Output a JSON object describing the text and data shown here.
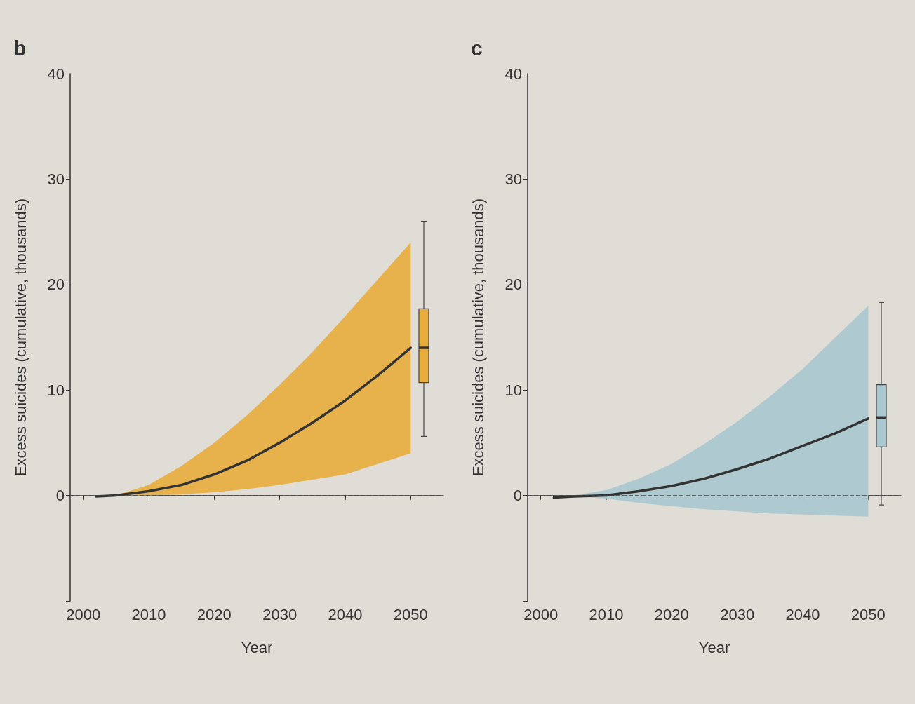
{
  "chart_data": [
    {
      "type": "line",
      "title": "b",
      "xlabel": "Year",
      "ylabel": "Excess suicides (cumulative, thousands)",
      "xlim": [
        1998,
        2055
      ],
      "xticks": [
        2000,
        2010,
        2020,
        2030,
        2040,
        2050
      ],
      "ylim": [
        -10,
        40
      ],
      "yticks": [
        {
          "value": -10,
          "label": null
        },
        0,
        10,
        20,
        30,
        40
      ],
      "grid": false,
      "marker": "none",
      "ref_lines": [
        {
          "axis": "y",
          "value": 0,
          "line_style": "dashed",
          "color": "#444444"
        }
      ],
      "series": [
        {
          "color": "#333333",
          "x": [
            2002,
            2005,
            2010,
            2015,
            2020,
            2025,
            2030,
            2035,
            2040,
            2045,
            2050
          ],
          "values": [
            -0.1,
            0,
            0.4,
            1,
            2,
            3.3,
            5,
            6.9,
            9,
            11.4,
            14
          ],
          "lower": [
            -0.1,
            0,
            0,
            0.1,
            0.3,
            0.6,
            1,
            1.5,
            2,
            3,
            4
          ],
          "upper": [
            -0.1,
            0,
            1,
            2.8,
            5,
            7.6,
            10.5,
            13.6,
            17,
            20.5,
            24
          ]
        },
        {
          "type": "box",
          "color": "#e8ac3c",
          "x": [
            2052
          ],
          "boxes": [
            {
              "low": 5.6,
              "q1": 10.7,
              "median": 14,
              "q3": 17.7,
              "high": 26
            }
          ]
        }
      ]
    },
    {
      "type": "line",
      "title": "c",
      "xlabel": "Year",
      "ylabel": "Excess suicides (cumulative, thousands)",
      "xlim": [
        1998,
        2055
      ],
      "xticks": [
        2000,
        2010,
        2020,
        2030,
        2040,
        2050
      ],
      "ylim": [
        -10,
        40
      ],
      "yticks": [
        {
          "value": -10,
          "label": null
        },
        0,
        10,
        20,
        30,
        40
      ],
      "grid": false,
      "marker": "none",
      "ref_lines": [
        {
          "axis": "y",
          "value": 0,
          "line_style": "dashed",
          "color": "#444444"
        }
      ],
      "series": [
        {
          "color": "#333333",
          "x": [
            2002,
            2005,
            2010,
            2015,
            2020,
            2025,
            2030,
            2035,
            2040,
            2045,
            2050
          ],
          "values": [
            -0.2,
            -0.1,
            0,
            0.4,
            0.9,
            1.6,
            2.5,
            3.5,
            4.7,
            5.9,
            7.3
          ],
          "lower": [
            -0.2,
            -0.1,
            -0.3,
            -0.7,
            -1,
            -1.3,
            -1.5,
            -1.7,
            -1.8,
            -1.9,
            -2
          ],
          "upper": [
            -0.2,
            0,
            0.5,
            1.6,
            3,
            4.9,
            7,
            9.4,
            12,
            15,
            18
          ]
        },
        {
          "type": "box",
          "color": "#a9c8cf",
          "x": [
            2052
          ],
          "boxes": [
            {
              "low": -0.9,
              "q1": 4.6,
              "median": 7.4,
              "q3": 10.5,
              "high": 18.3
            }
          ]
        }
      ]
    }
  ]
}
